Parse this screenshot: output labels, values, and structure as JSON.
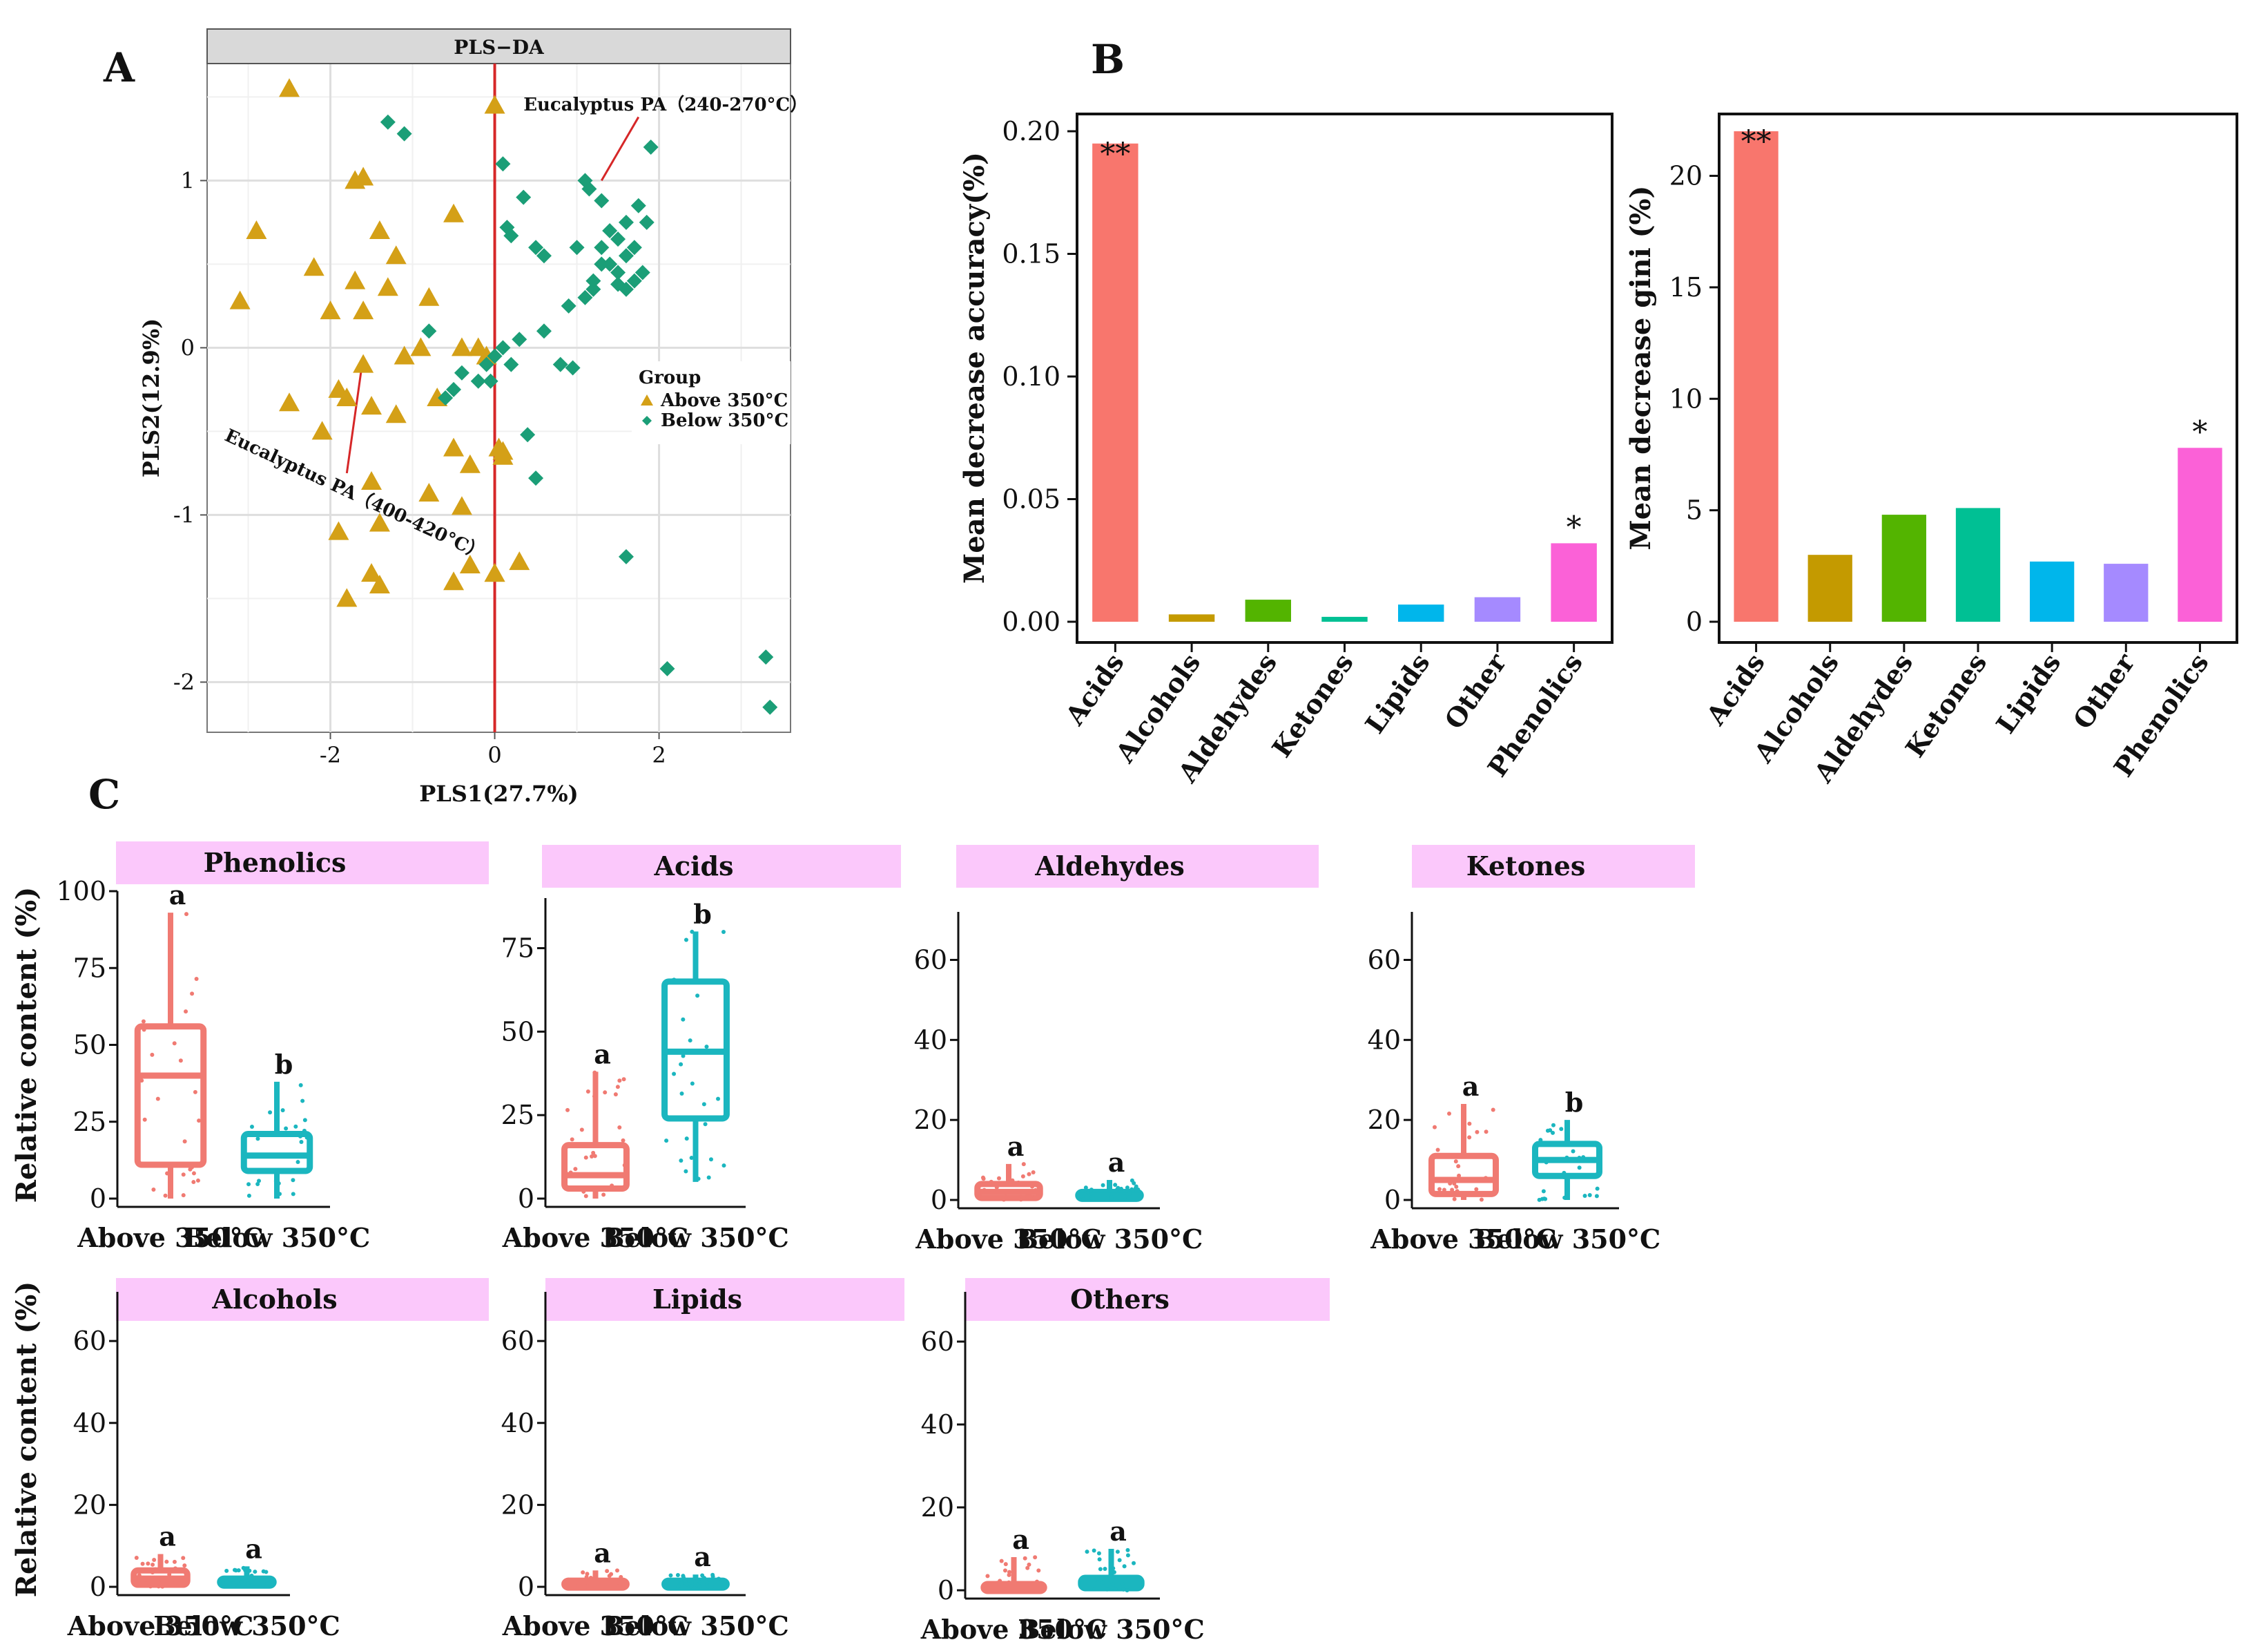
{
  "colors": {
    "above": "#d4a017",
    "below": "#1b9e77",
    "box_above": "#f07a72",
    "box_below": "#1bb6bf",
    "strip": "#fbc8fb",
    "red_line": "#d62728",
    "bars": [
      "#f8766d",
      "#c49a00",
      "#53b400",
      "#00c094",
      "#00b6eb",
      "#a58aff",
      "#fb61d7"
    ]
  },
  "panel_labels": {
    "a": "A",
    "b": "B",
    "c": "C"
  },
  "chart_data": [
    {
      "id": "plsda",
      "type": "scatter",
      "title": "PLS−DA",
      "xlabel": "PLS1(27.7%)",
      "ylabel": "PLS2(12.9%)",
      "xlim": [
        -3.5,
        3.6
      ],
      "ylim": [
        -2.3,
        1.7
      ],
      "xticks": [
        -2,
        0,
        2
      ],
      "yticks": [
        -2,
        -1,
        0,
        1
      ],
      "legend": {
        "title": "Group",
        "entries": [
          "Above 350°C",
          "Below 350°C"
        ],
        "position": "right-middle"
      },
      "annotations": [
        "Eucalyptus PA（240-270°C）",
        "Eucalyptus PA（400-420°C）"
      ],
      "series": [
        {
          "name": "Above 350°C",
          "marker": "triangle",
          "x": [
            -2.5,
            -2.9,
            -3.1,
            -2.2,
            -2.0,
            -1.7,
            -1.6,
            -1.7,
            -1.4,
            -1.3,
            -1.6,
            -1.2,
            -0.8,
            -0.5,
            -1.1,
            -0.9,
            -0.4,
            -0.1,
            0.0,
            0.05,
            0.1,
            -1.6,
            -1.9,
            -1.5,
            -1.8,
            -2.1,
            -2.5,
            -1.2,
            -0.7,
            -0.5,
            -0.3,
            -0.8,
            -0.4,
            -1.5,
            -1.4,
            -1.9,
            -0.3,
            0.0,
            0.3,
            -1.5,
            -0.5,
            -1.4,
            0.0,
            0.1,
            -0.2,
            -1.8
          ],
          "y": [
            1.55,
            0.7,
            0.28,
            0.48,
            0.22,
            1.0,
            1.02,
            0.4,
            0.7,
            0.36,
            0.22,
            0.55,
            0.3,
            0.8,
            -0.05,
            0.0,
            0.0,
            -0.05,
            1.45,
            -0.6,
            -0.62,
            -0.1,
            -0.25,
            -0.35,
            -0.3,
            -0.5,
            -0.33,
            -0.4,
            -0.3,
            -0.6,
            -0.7,
            -0.87,
            -0.95,
            -0.8,
            -1.05,
            -1.1,
            -1.3,
            -1.35,
            -1.28,
            -1.35,
            -1.4,
            -1.42,
            -1.35,
            -0.65,
            0.0,
            -1.5
          ]
        },
        {
          "name": "Below 350°C",
          "marker": "diamond",
          "x": [
            -1.3,
            -1.1,
            0.1,
            0.15,
            0.2,
            0.35,
            0.5,
            0.6,
            1.1,
            1.15,
            1.3,
            1.4,
            1.5,
            1.6,
            1.7,
            1.75,
            1.85,
            1.9,
            1.3,
            1.5,
            1.6,
            1.7,
            1.2,
            1.3,
            1.4,
            1.6,
            1.8,
            1.0,
            1.1,
            1.2,
            1.5,
            0.9,
            0.8,
            0.95,
            0.6,
            0.3,
            0.2,
            0.1,
            0.0,
            -0.1,
            -0.2,
            -0.4,
            -0.5,
            -0.6,
            -0.8,
            0.5,
            0.4,
            -0.05,
            1.6,
            2.1,
            3.3,
            3.35
          ],
          "y": [
            1.35,
            1.28,
            1.1,
            0.72,
            0.67,
            0.9,
            0.6,
            0.55,
            1.0,
            0.95,
            0.88,
            0.7,
            0.65,
            0.75,
            0.6,
            0.85,
            0.75,
            1.2,
            0.5,
            0.45,
            0.55,
            0.4,
            0.35,
            0.6,
            0.5,
            0.35,
            0.45,
            0.6,
            0.3,
            0.4,
            0.38,
            0.25,
            -0.1,
            -0.12,
            0.1,
            0.05,
            -0.1,
            0.0,
            -0.05,
            -0.1,
            -0.2,
            -0.15,
            -0.25,
            -0.3,
            0.1,
            -0.78,
            -0.52,
            -0.2,
            -1.25,
            -1.92,
            -1.85,
            -2.15
          ]
        }
      ]
    },
    {
      "id": "mda",
      "type": "bar",
      "ylabel": "Mean decrease accuracy(%)",
      "categories": [
        "Acids",
        "Alcohols",
        "Aldehydes",
        "Ketones",
        "Lipids",
        "Other",
        "Phenolics"
      ],
      "values": [
        0.195,
        0.003,
        0.009,
        0.002,
        0.007,
        0.01,
        0.032
      ],
      "sig": [
        "**",
        "",
        "",
        "",
        "",
        "",
        "*"
      ],
      "ylim": [
        0,
        0.2
      ],
      "yticks": [
        0.0,
        0.05,
        0.1,
        0.15,
        0.2
      ],
      "ytick_labels": [
        "0.00",
        "0.05",
        "0.10",
        "0.15",
        "0.20"
      ]
    },
    {
      "id": "gini",
      "type": "bar",
      "ylabel": "Mean decrease gini (%)",
      "categories": [
        "Acids",
        "Alcohols",
        "Aldehydes",
        "Ketones",
        "Lipids",
        "Other",
        "Phenolics"
      ],
      "values": [
        22.0,
        3.0,
        4.8,
        5.1,
        2.7,
        2.6,
        7.8
      ],
      "sig": [
        "**",
        "",
        "",
        "",
        "",
        "",
        "*"
      ],
      "ylim": [
        0,
        22
      ],
      "yticks": [
        0,
        5,
        10,
        15,
        20
      ],
      "ytick_labels": [
        "0",
        "5",
        "10",
        "15",
        "20"
      ]
    },
    {
      "id": "box-phenolics",
      "type": "box",
      "title": "Phenolics",
      "ylabel": "Relative content (%)",
      "categories": [
        "Above 350°C",
        "Below 350°C"
      ],
      "ylim": [
        0,
        100
      ],
      "yticks": [
        0,
        25,
        50,
        75,
        100
      ],
      "boxes": [
        {
          "min": 0,
          "q1": 11,
          "median": 40,
          "q3": 56,
          "max": 93
        },
        {
          "min": 0,
          "q1": 9,
          "median": 14,
          "q3": 21,
          "max": 38
        }
      ],
      "letters": [
        "a",
        "b"
      ]
    },
    {
      "id": "box-acids",
      "type": "box",
      "title": "Acids",
      "ylabel": "",
      "categories": [
        "Above 350°C",
        "Below 350°C"
      ],
      "ylim": [
        0,
        90
      ],
      "yticks": [
        0,
        25,
        50,
        75
      ],
      "boxes": [
        {
          "min": 0,
          "q1": 3,
          "median": 7,
          "q3": 16,
          "max": 38
        },
        {
          "min": 5,
          "q1": 24,
          "median": 44,
          "q3": 65,
          "max": 80
        }
      ],
      "letters": [
        "a",
        "b"
      ]
    },
    {
      "id": "box-aldehydes",
      "type": "box",
      "title": "Aldehydes",
      "ylabel": "",
      "categories": [
        "Above 350°C",
        "Below 350°C"
      ],
      "ylim": [
        0,
        72
      ],
      "yticks": [
        0,
        20,
        40,
        60
      ],
      "boxes": [
        {
          "min": 0,
          "q1": 0.5,
          "median": 2,
          "q3": 4,
          "max": 9
        },
        {
          "min": 0,
          "q1": 0.3,
          "median": 1,
          "q3": 2,
          "max": 5
        }
      ],
      "letters": [
        "a",
        "a"
      ]
    },
    {
      "id": "box-ketones",
      "type": "box",
      "title": "Ketones",
      "ylabel": "",
      "categories": [
        "Above 350°C",
        "Below 350°C"
      ],
      "ylim": [
        0,
        72
      ],
      "yticks": [
        0,
        20,
        40,
        60
      ],
      "boxes": [
        {
          "min": 0,
          "q1": 1.5,
          "median": 5,
          "q3": 11,
          "max": 24
        },
        {
          "min": 0,
          "q1": 6,
          "median": 10,
          "q3": 14,
          "max": 20
        }
      ],
      "letters": [
        "a",
        "b"
      ]
    },
    {
      "id": "box-alcohols",
      "type": "box",
      "title": "Alcohols",
      "ylabel": "Relative content (%)",
      "categories": [
        "Above 350°C",
        "Below 350°C"
      ],
      "ylim": [
        0,
        72
      ],
      "yticks": [
        0,
        20,
        40,
        60
      ],
      "boxes": [
        {
          "min": 0,
          "q1": 0.5,
          "median": 2,
          "q3": 4,
          "max": 8
        },
        {
          "min": 0,
          "q1": 0.3,
          "median": 1,
          "q3": 2,
          "max": 5
        }
      ],
      "letters": [
        "a",
        "a"
      ]
    },
    {
      "id": "box-lipids",
      "type": "box",
      "title": "Lipids",
      "ylabel": "",
      "categories": [
        "Above 350°C",
        "Below 350°C"
      ],
      "ylim": [
        0,
        72
      ],
      "yticks": [
        0,
        20,
        40,
        60
      ],
      "boxes": [
        {
          "min": 0,
          "q1": 0,
          "median": 0.5,
          "q3": 1.5,
          "max": 4
        },
        {
          "min": 0,
          "q1": 0,
          "median": 0.5,
          "q3": 1.5,
          "max": 3
        }
      ],
      "letters": [
        "a",
        "a"
      ]
    },
    {
      "id": "box-others",
      "type": "box",
      "title": "Others",
      "ylabel": "",
      "categories": [
        "Above 350°C",
        "Below 350°C"
      ],
      "ylim": [
        0,
        72
      ],
      "yticks": [
        0,
        20,
        40,
        60
      ],
      "boxes": [
        {
          "min": 0,
          "q1": 0,
          "median": 0.5,
          "q3": 1.5,
          "max": 8
        },
        {
          "min": 0,
          "q1": 0.5,
          "median": 1.5,
          "q3": 3,
          "max": 10
        }
      ],
      "letters": [
        "a",
        "a"
      ]
    }
  ]
}
